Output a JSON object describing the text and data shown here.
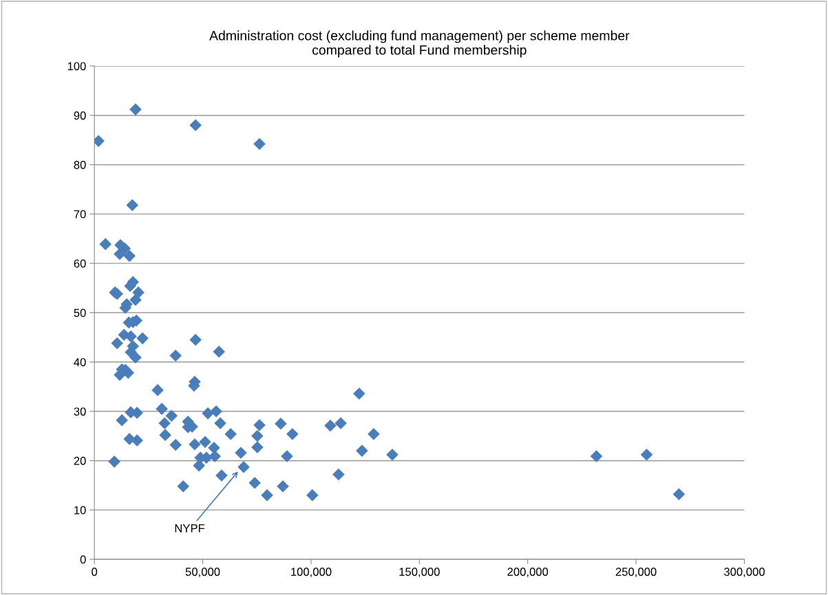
{
  "chart_data": {
    "type": "scatter",
    "title": "Administration cost (excluding fund management) per scheme member\ncompared to total Fund membership",
    "x": [
      1900,
      19000,
      46700,
      76200,
      17500,
      5100,
      12000,
      14000,
      11700,
      16200,
      17800,
      16500,
      9500,
      10500,
      20300,
      19000,
      14900,
      14300,
      15900,
      19400,
      17800,
      13700,
      16800,
      22200,
      10500,
      17800,
      16800,
      19000,
      11700,
      14300,
      15600,
      12700,
      37500,
      46700,
      57500,
      46300,
      46000,
      29200,
      31100,
      35600,
      32400,
      32700,
      37500,
      43200,
      43200,
      45100,
      46300,
      51100,
      48300,
      48900,
      51700,
      55200,
      55600,
      52400,
      56200,
      58100,
      62900,
      58700,
      41000,
      67600,
      68900,
      76200,
      75200,
      75200,
      74000,
      86000,
      91400,
      88900,
      87000,
      108900,
      113700,
      122200,
      128900,
      123500,
      137500,
      112700,
      79700,
      100600,
      231700,
      254900,
      269800,
      12700,
      16800,
      19700,
      16200,
      19700,
      9200
    ],
    "series": [
      {
        "color": "#4a7ebb",
        "values": [
          84.8,
          91.2,
          88.0,
          84.2,
          71.8,
          63.9,
          63.7,
          63.0,
          61.9,
          61.5,
          56.2,
          55.4,
          54.1,
          53.8,
          54.1,
          52.6,
          51.7,
          51.0,
          48.0,
          48.4,
          48.1,
          45.5,
          45.2,
          44.8,
          43.8,
          43.2,
          42.0,
          40.9,
          37.4,
          38.4,
          37.8,
          38.5,
          41.3,
          44.5,
          42.1,
          36.0,
          35.2,
          34.3,
          30.5,
          29.1,
          27.6,
          25.2,
          23.2,
          27.9,
          26.8,
          26.9,
          23.3,
          23.8,
          19.0,
          20.6,
          20.6,
          22.6,
          20.9,
          29.6,
          30.0,
          27.6,
          25.4,
          17.0,
          14.8,
          21.6,
          18.7,
          27.2,
          25.0,
          22.7,
          15.5,
          27.5,
          25.4,
          20.9,
          14.8,
          27.1,
          27.6,
          33.6,
          25.4,
          22.0,
          21.2,
          17.2,
          13.0,
          13.0,
          20.9,
          21.2,
          13.2,
          28.2,
          29.8,
          29.7,
          24.4,
          24.1,
          19.8
        ]
      }
    ],
    "annotations": [
      "NYPF"
    ],
    "xlim": [
      0,
      300000
    ],
    "xticks": [
      {
        "value": 0,
        "label": "0"
      },
      {
        "value": 50000,
        "label": "50,000"
      },
      {
        "value": 100000,
        "label": "100,000"
      },
      {
        "value": 150000,
        "label": "150,000"
      },
      {
        "value": 200000,
        "label": "200,000"
      },
      {
        "value": 250000,
        "label": "250,000"
      },
      {
        "value": 300000,
        "label": "300,000"
      }
    ],
    "ylim": [
      0,
      100
    ],
    "yticks": [
      0,
      10,
      20,
      30,
      40,
      50,
      60,
      70,
      80,
      90,
      100
    ],
    "grid": "y",
    "marker": "diamond",
    "legend": false
  }
}
